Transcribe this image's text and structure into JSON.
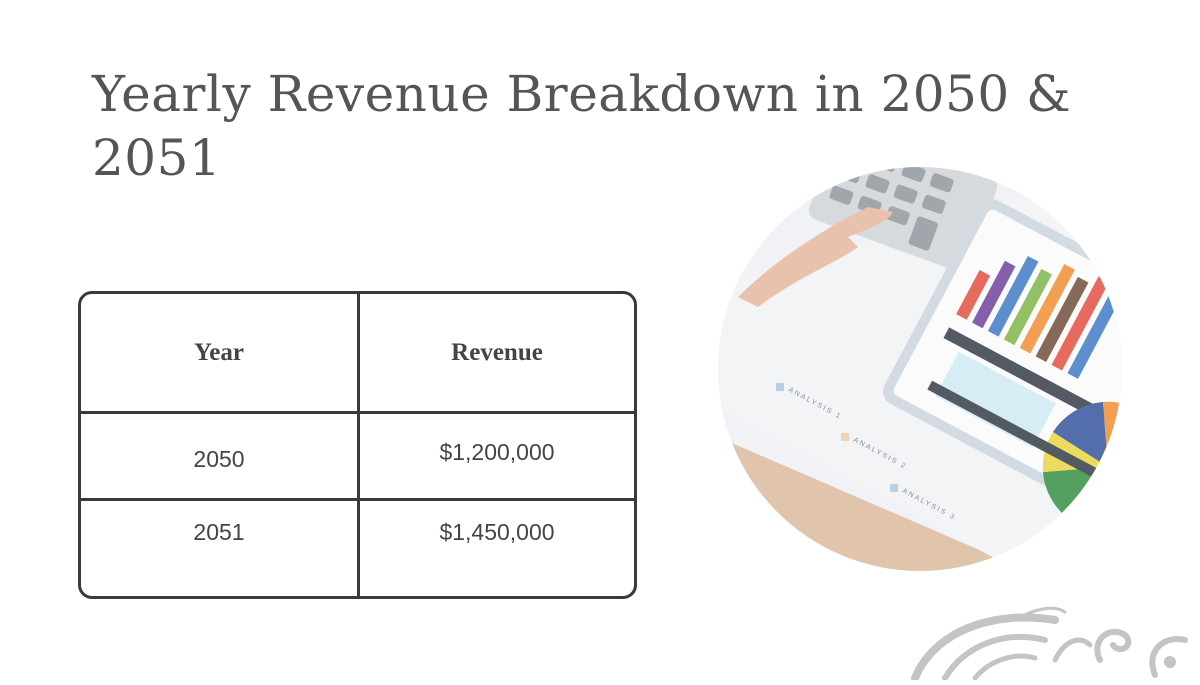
{
  "slide": {
    "title": "Yearly Revenue Breakdown in 2050 & 2051"
  },
  "table": {
    "headers": [
      "Year",
      "Revenue"
    ],
    "rows": [
      [
        "2050",
        "$1,200,000"
      ],
      [
        "2051",
        "$1,450,000"
      ]
    ]
  },
  "photo": {
    "subject": "hand-using-calculator-with-financial-charts",
    "labels": [
      "ANALYSIS 1",
      "ANALYSIS 2",
      "ANALYSIS 3"
    ]
  },
  "colors": {
    "title": "#555555",
    "table_border": "#3a3a3a",
    "ornament": "#c4c4c4"
  }
}
